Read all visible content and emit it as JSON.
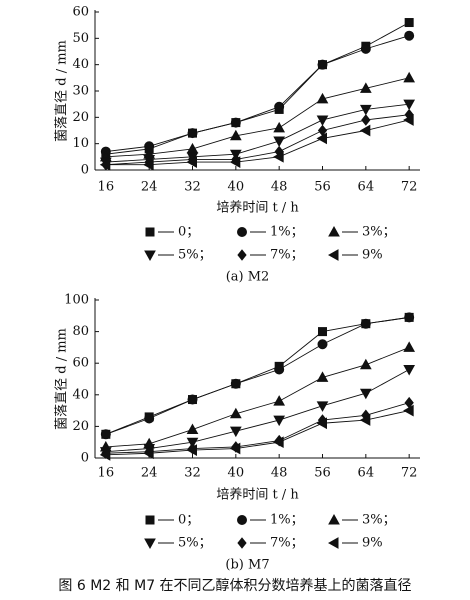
{
  "caption": "图 6   M2 和 M7 在不同乙醇体积分数培养基上的菌落直径",
  "chart_data": [
    {
      "type": "line",
      "subtitle": "(a)  M2",
      "xlabel": "培养时间 t / h",
      "ylabel": "菌落直径 d / mm",
      "x": [
        16,
        24,
        32,
        40,
        48,
        56,
        64,
        72
      ],
      "xlim": [
        14,
        74
      ],
      "xticks": [
        16,
        24,
        32,
        40,
        48,
        56,
        64,
        72
      ],
      "ylim": [
        0,
        60
      ],
      "yticks": [
        0,
        10,
        20,
        30,
        40,
        50,
        60
      ],
      "series": [
        {
          "name": "0；",
          "marker": "square",
          "color": "#111111",
          "values": [
            6,
            8,
            14,
            18,
            23,
            40,
            47,
            56
          ]
        },
        {
          "name": "1%；",
          "marker": "circle",
          "color": "#111111",
          "values": [
            7,
            9,
            14,
            18,
            24,
            40,
            46,
            51
          ]
        },
        {
          "name": "3%；",
          "marker": "triangle-up",
          "color": "#111111",
          "values": [
            5,
            6,
            8,
            13,
            16,
            27,
            31,
            35
          ]
        },
        {
          "name": "5%；",
          "marker": "triangle-down",
          "color": "#111111",
          "values": [
            3,
            4,
            5,
            6,
            11,
            19,
            23,
            25
          ]
        },
        {
          "name": "7%；",
          "marker": "diamond",
          "color": "#111111",
          "values": [
            2,
            3,
            4,
            4,
            7,
            15,
            19,
            21
          ]
        },
        {
          "name": "9%",
          "marker": "triangle-left",
          "color": "#111111",
          "values": [
            2,
            2,
            3,
            3,
            5,
            12,
            15,
            19
          ]
        }
      ]
    },
    {
      "type": "line",
      "subtitle": "(b)  M7",
      "xlabel": "培养时间 t / h",
      "ylabel": "菌落直径 d / mm",
      "x": [
        16,
        24,
        32,
        40,
        48,
        56,
        64,
        72
      ],
      "xlim": [
        14,
        74
      ],
      "xticks": [
        16,
        24,
        32,
        40,
        48,
        56,
        64,
        72
      ],
      "ylim": [
        0,
        100
      ],
      "yticks": [
        0,
        20,
        40,
        60,
        80,
        100
      ],
      "series": [
        {
          "name": "0；",
          "marker": "square",
          "color": "#111111",
          "values": [
            15,
            26,
            37,
            47,
            58,
            80,
            85,
            89
          ]
        },
        {
          "name": "1%；",
          "marker": "circle",
          "color": "#111111",
          "values": [
            15,
            25,
            37,
            47,
            56,
            72,
            85,
            89
          ]
        },
        {
          "name": "3%；",
          "marker": "triangle-up",
          "color": "#111111",
          "values": [
            7,
            9,
            18,
            28,
            36,
            51,
            59,
            70
          ]
        },
        {
          "name": "5%；",
          "marker": "triangle-down",
          "color": "#111111",
          "values": [
            4,
            6,
            10,
            17,
            24,
            33,
            41,
            56
          ]
        },
        {
          "name": "7%；",
          "marker": "diamond",
          "color": "#111111",
          "values": [
            3,
            4,
            6,
            7,
            11,
            24,
            27,
            35
          ]
        },
        {
          "name": "9%",
          "marker": "triangle-left",
          "color": "#111111",
          "values": [
            2,
            3,
            5,
            6,
            10,
            22,
            24,
            30
          ]
        }
      ]
    }
  ]
}
